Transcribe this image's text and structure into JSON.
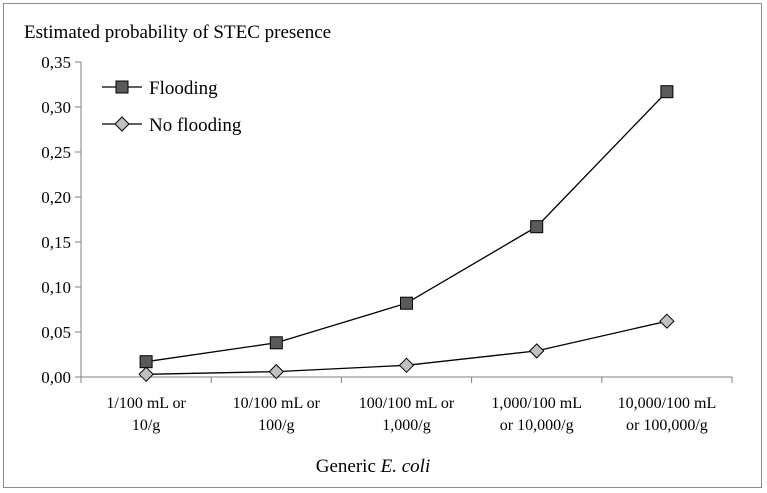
{
  "chart_data": {
    "type": "line",
    "title": "Estimated probability  of STEC presence",
    "xlabel": {
      "prefix": "Generic ",
      "italic": "E. coli"
    },
    "ylabel": "",
    "ylim": [
      0,
      0.35
    ],
    "y_ticks": [
      "0,00",
      "0,05",
      "0,10",
      "0,15",
      "0,20",
      "0,25",
      "0,30",
      "0,35"
    ],
    "y_tick_values": [
      0,
      0.05,
      0.1,
      0.15,
      0.2,
      0.25,
      0.3,
      0.35
    ],
    "categories": [
      [
        "1/100 mL or",
        "10/g"
      ],
      [
        "10/100 mL or",
        "100/g"
      ],
      [
        "100/100 mL  or",
        "1,000/g"
      ],
      [
        "1,000/100 mL",
        "or 10,000/g"
      ],
      [
        "10,000/100 mL",
        "or 100,000/g"
      ]
    ],
    "series": [
      {
        "name": "Flooding",
        "marker": "square",
        "color": "#5a5a5a",
        "values": [
          0.017,
          0.038,
          0.082,
          0.167,
          0.317
        ]
      },
      {
        "name": "No flooding",
        "marker": "diamond",
        "color": "#c0c0c0",
        "values": [
          0.003,
          0.006,
          0.013,
          0.029,
          0.062
        ]
      }
    ],
    "grid": false,
    "legend": "top-left"
  }
}
